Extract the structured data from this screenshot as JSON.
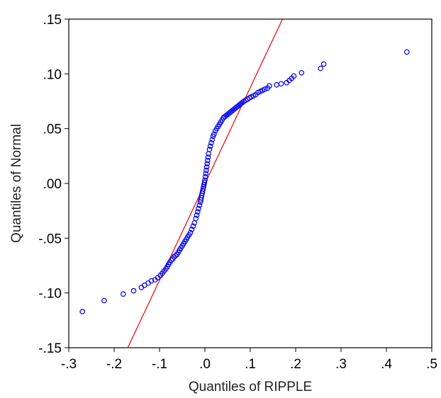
{
  "chart_data": {
    "type": "scatter",
    "title": "",
    "xlabel": "Quantiles of RIPPLE",
    "ylabel": "Quantiles of Normal",
    "xlim": [
      -0.3,
      0.5
    ],
    "ylim": [
      -0.15,
      0.15
    ],
    "x_ticks": [
      -0.3,
      -0.2,
      -0.1,
      0.0,
      0.1,
      0.2,
      0.3,
      0.4,
      0.5
    ],
    "x_tick_labels": [
      "-.3",
      "-.2",
      "-.1",
      ".0",
      ".1",
      ".2",
      ".3",
      ".4",
      ".5"
    ],
    "y_ticks": [
      -0.15,
      -0.1,
      -0.05,
      0.0,
      0.05,
      0.1,
      0.15
    ],
    "y_tick_labels": [
      "-.15",
      "-.10",
      "-.05",
      ".00",
      ".05",
      ".10",
      ".15"
    ],
    "grid": false,
    "legend": "none",
    "colors": {
      "points": "#0000ee",
      "reference_line": "#ee0000",
      "frame": "#000000"
    },
    "reference_line": {
      "points": [
        [
          -0.17,
          -0.15
        ],
        [
          0.171,
          0.15
        ]
      ]
    },
    "series": [
      {
        "x": [
          -0.27,
          -0.222,
          -0.18,
          -0.157,
          -0.14,
          -0.133,
          -0.125,
          -0.118,
          -0.11,
          -0.104,
          -0.098,
          -0.094,
          -0.09,
          -0.086,
          -0.083,
          -0.08,
          -0.077,
          -0.074,
          -0.071,
          -0.068,
          -0.065,
          -0.062,
          -0.059,
          -0.056,
          -0.053,
          -0.05,
          -0.047,
          -0.044,
          -0.041,
          -0.038,
          -0.035,
          -0.032,
          -0.029,
          -0.026,
          -0.023,
          -0.02,
          -0.018,
          -0.016,
          -0.014,
          -0.012,
          -0.01,
          -0.009,
          -0.008,
          -0.007,
          -0.006,
          -0.005,
          -0.004,
          -0.003,
          -0.002,
          -0.001,
          0.0,
          0.001,
          0.002,
          0.003,
          0.004,
          0.005,
          0.006,
          0.007,
          0.008,
          0.01,
          0.012,
          0.014,
          0.016,
          0.018,
          0.02,
          0.023,
          0.026,
          0.029,
          0.032,
          0.035,
          0.038,
          0.041,
          0.044,
          0.047,
          0.05,
          0.053,
          0.056,
          0.059,
          0.062,
          0.065,
          0.068,
          0.071,
          0.074,
          0.077,
          0.08,
          0.083,
          0.086,
          0.09,
          0.094,
          0.098,
          0.102,
          0.107,
          0.112,
          0.117,
          0.122,
          0.127,
          0.132,
          0.138,
          0.142,
          0.158,
          0.168,
          0.18,
          0.186,
          0.191,
          0.196,
          0.213,
          0.255,
          0.262,
          0.445
        ],
        "y": [
          -0.117,
          -0.107,
          -0.101,
          -0.098,
          -0.095,
          -0.093,
          -0.091,
          -0.089,
          -0.088,
          -0.086,
          -0.084,
          -0.082,
          -0.08,
          -0.078,
          -0.076,
          -0.074,
          -0.072,
          -0.07,
          -0.069,
          -0.067,
          -0.066,
          -0.065,
          -0.063,
          -0.061,
          -0.059,
          -0.057,
          -0.055,
          -0.053,
          -0.051,
          -0.049,
          -0.047,
          -0.045,
          -0.042,
          -0.039,
          -0.036,
          -0.032,
          -0.029,
          -0.026,
          -0.023,
          -0.02,
          -0.017,
          -0.015,
          -0.013,
          -0.011,
          -0.009,
          -0.007,
          -0.005,
          -0.003,
          -0.001,
          0.001,
          0.003,
          0.006,
          0.009,
          0.012,
          0.015,
          0.018,
          0.021,
          0.024,
          0.027,
          0.031,
          0.034,
          0.037,
          0.04,
          0.043,
          0.045,
          0.048,
          0.05,
          0.052,
          0.054,
          0.056,
          0.058,
          0.06,
          0.061,
          0.062,
          0.063,
          0.064,
          0.065,
          0.066,
          0.067,
          0.068,
          0.069,
          0.07,
          0.071,
          0.072,
          0.073,
          0.074,
          0.075,
          0.076,
          0.077,
          0.078,
          0.079,
          0.08,
          0.081,
          0.083,
          0.084,
          0.085,
          0.086,
          0.087,
          0.089,
          0.09,
          0.091,
          0.092,
          0.094,
          0.096,
          0.098,
          0.101,
          0.105,
          0.109,
          0.12
        ]
      }
    ]
  }
}
